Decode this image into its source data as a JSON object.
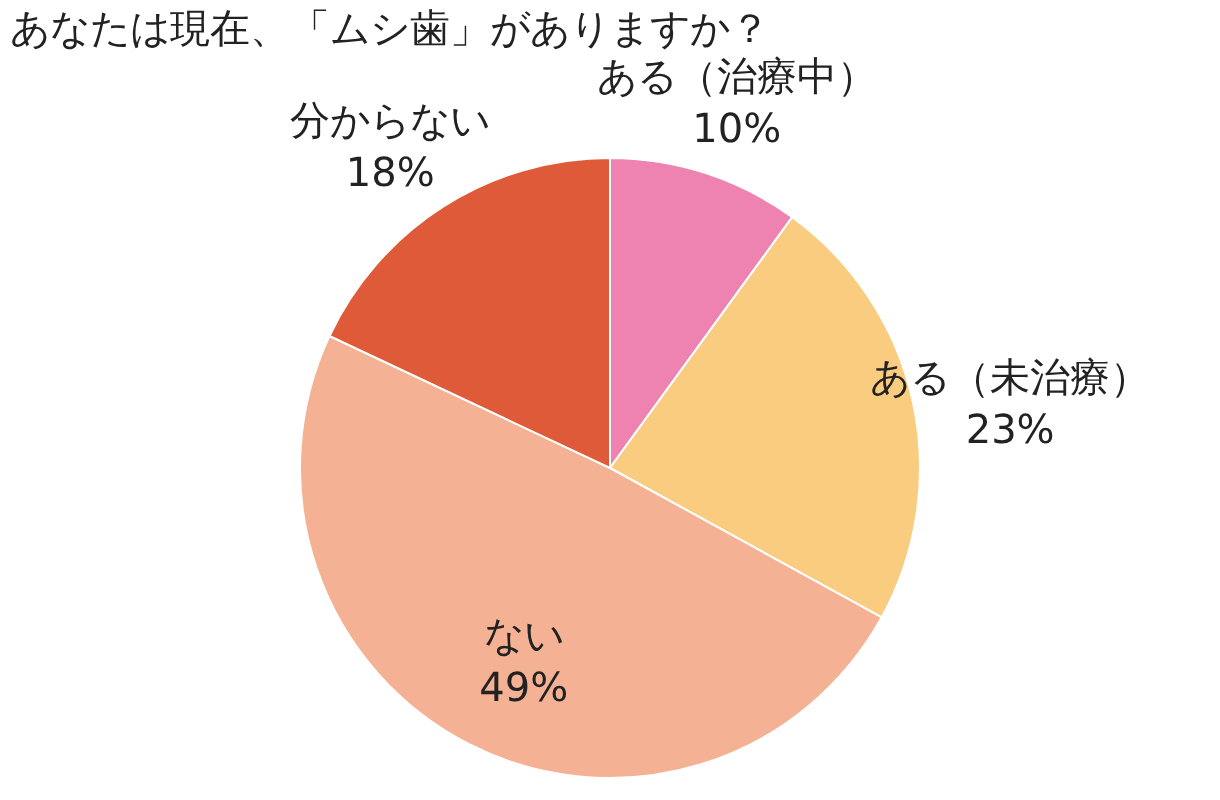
{
  "chart_data": {
    "type": "pie",
    "title": "あなたは現在、「ムシ歯」がありますか？",
    "categories": [
      "ある（治療中）",
      "ある（未治療）",
      "ない",
      "分からない"
    ],
    "values": [
      10,
      23,
      49,
      18
    ],
    "value_labels": [
      "10%",
      "23%",
      "49%",
      "18%"
    ],
    "colors": [
      "#ee82b0",
      "#f9cc80",
      "#f5b193",
      "#de5a38"
    ],
    "legend": false
  }
}
